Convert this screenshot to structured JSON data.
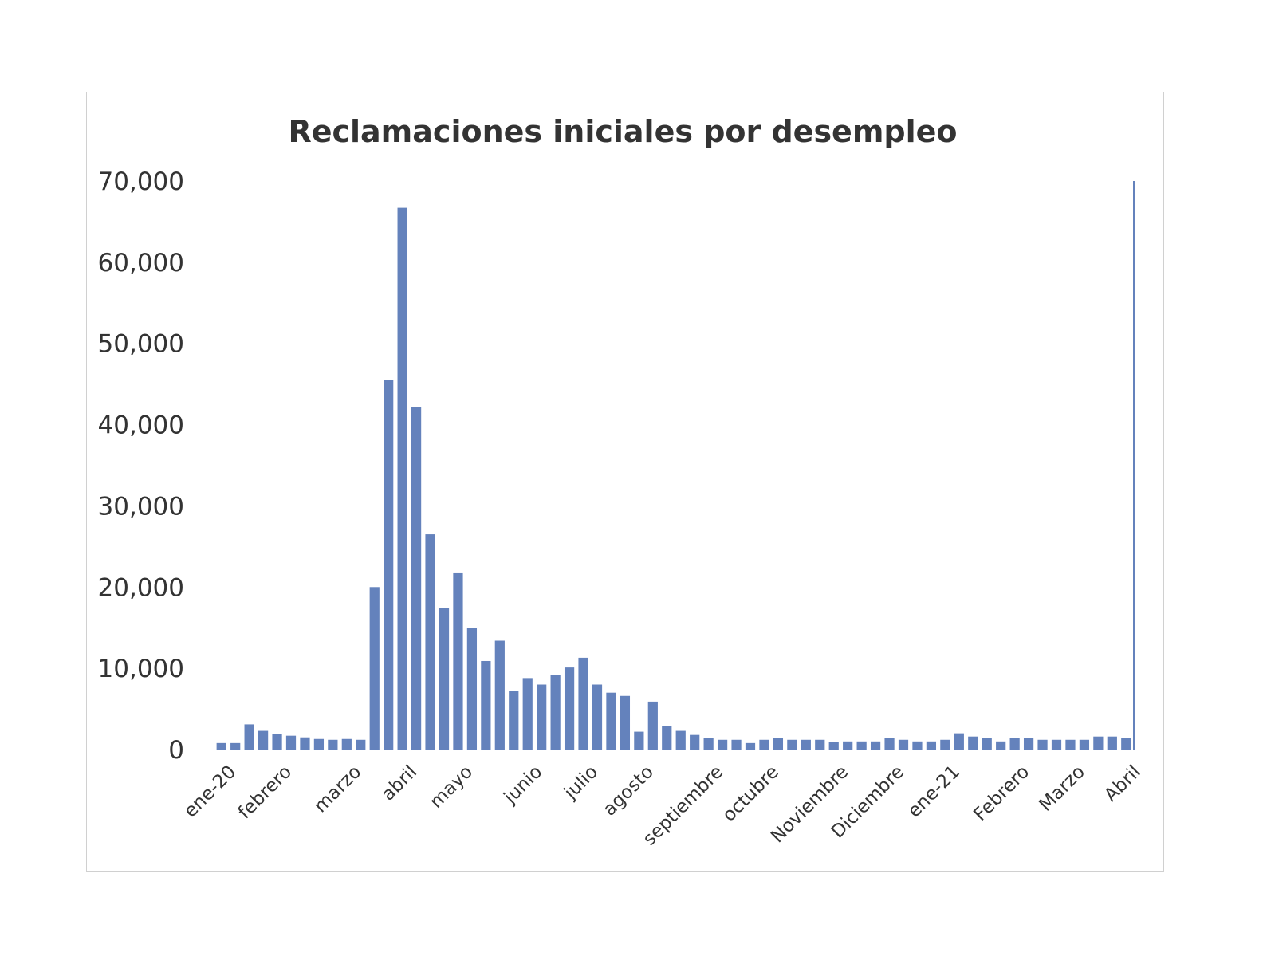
{
  "chart_data": {
    "type": "bar",
    "title": "Reclamaciones iniciales por desempleo",
    "xlabel": "",
    "ylabel": "",
    "ylim": [
      0,
      70000
    ],
    "yticks": [
      "0",
      "10,000",
      "20,000",
      "30,000",
      "40,000",
      "50,000",
      "60,000",
      "70,000"
    ],
    "grid": false,
    "legend": "none",
    "bar_color": "#6482BC",
    "xtick_labels": [
      {
        "label": "ene-20",
        "index": 0
      },
      {
        "label": "febrero",
        "index": 4
      },
      {
        "label": "marzo",
        "index": 9
      },
      {
        "label": "abril",
        "index": 13
      },
      {
        "label": "mayo",
        "index": 17
      },
      {
        "label": "junio",
        "index": 22
      },
      {
        "label": "julio",
        "index": 26
      },
      {
        "label": "agosto",
        "index": 30
      },
      {
        "label": "septiembre",
        "index": 35
      },
      {
        "label": "octubre",
        "index": 39
      },
      {
        "label": "Noviembre",
        "index": 44
      },
      {
        "label": "Diciembre",
        "index": 48
      },
      {
        "label": "ene-21",
        "index": 52
      },
      {
        "label": "Febrero",
        "index": 57
      },
      {
        "label": "Marzo",
        "index": 61
      },
      {
        "label": "Abril",
        "index": 65
      }
    ],
    "values": [
      800,
      800,
      3100,
      2300,
      1900,
      1700,
      1500,
      1300,
      1200,
      1300,
      1200,
      20000,
      45500,
      66700,
      42200,
      26500,
      17400,
      21800,
      15000,
      10900,
      13400,
      7200,
      8800,
      8000,
      9200,
      10100,
      11300,
      8000,
      7000,
      6600,
      2200,
      5900,
      2900,
      2300,
      1800,
      1400,
      1200,
      1200,
      800,
      1200,
      1400,
      1200,
      1200,
      1200,
      900,
      1000,
      1000,
      1000,
      1400,
      1200,
      1000,
      1000,
      1200,
      2000,
      1600,
      1400,
      1000,
      1400,
      1400,
      1200,
      1200,
      1200,
      1200,
      1600,
      1600,
      1400
    ]
  }
}
